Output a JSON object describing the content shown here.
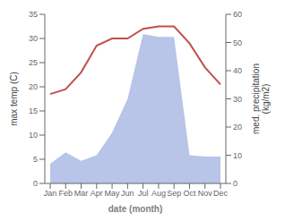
{
  "chart_data": {
    "type": "line",
    "categories": [
      "Jan",
      "Feb",
      "Mar",
      "Apr",
      "May",
      "Jun",
      "Jul",
      "Aug",
      "Sep",
      "Oct",
      "Nov",
      "Dec"
    ],
    "xlabel": "date (month)",
    "ylabel": "max temp (C)",
    "y2label": "med. precipitation\n(kg/m2)",
    "series": [
      {
        "type": "area",
        "color": "#b8c4e8",
        "axis": "y2",
        "values": [
          7.0,
          11.0,
          8.0,
          10.0,
          18.0,
          30.0,
          53.0,
          52.0,
          52.0,
          10.0,
          9.5,
          9.5
        ]
      },
      {
        "type": "line",
        "color": "#c0504d",
        "values": [
          18.5,
          19.5,
          23.0,
          28.5,
          30.0,
          30.0,
          32.0,
          32.5,
          32.5,
          29.0,
          24.0,
          20.5
        ]
      }
    ],
    "ylim": [
      0,
      35
    ],
    "yticks": [
      0,
      5,
      10,
      15,
      20,
      25,
      30,
      35
    ],
    "y2lim": [
      0,
      60
    ],
    "y2ticks": [
      0,
      10,
      20,
      30,
      40,
      50,
      60
    ]
  }
}
